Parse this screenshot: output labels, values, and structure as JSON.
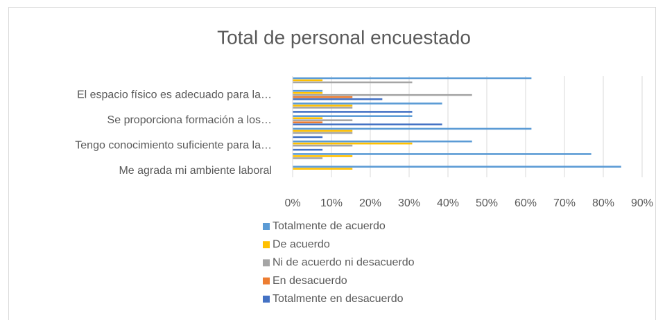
{
  "chart_data": {
    "type": "bar",
    "orientation": "horizontal",
    "title": "Total de personal encuestado",
    "categories": [
      null,
      "El espacio físico es adecuado para la…",
      null,
      "Se proporciona formación a los…",
      null,
      "Tengo conocimiento suficiente para la…",
      null,
      "Me agrada mi ambiente laboral"
    ],
    "series": [
      {
        "name": "Totalmente de acuerdo",
        "color": "#5b9bd5",
        "values": [
          61.5,
          7.7,
          38.5,
          30.8,
          61.5,
          46.2,
          76.9,
          84.6
        ]
      },
      {
        "name": "De acuerdo",
        "color": "#ffc000",
        "values": [
          7.7,
          7.7,
          15.4,
          7.7,
          15.4,
          30.8,
          15.4,
          15.4
        ]
      },
      {
        "name": "Ni de acuerdo ni desacuerdo",
        "color": "#a5a5a5",
        "values": [
          30.8,
          46.2,
          15.4,
          15.4,
          15.4,
          15.4,
          7.7,
          0
        ]
      },
      {
        "name": "En desacuerdo",
        "color": "#ed7d31",
        "values": [
          0,
          15.4,
          0,
          7.7,
          0,
          0,
          0,
          0
        ]
      },
      {
        "name": "Totalmente en desacuerdo",
        "color": "#4472c4",
        "values": [
          0,
          23.1,
          30.8,
          38.5,
          7.7,
          7.7,
          0,
          0
        ]
      }
    ],
    "xlim": [
      0,
      90
    ],
    "xticks": [
      {
        "value": 0,
        "label": "0%"
      },
      {
        "value": 10,
        "label": "10%"
      },
      {
        "value": 20,
        "label": "20%"
      },
      {
        "value": 30,
        "label": "30%"
      },
      {
        "value": 40,
        "label": "40%"
      },
      {
        "value": 50,
        "label": "50%"
      },
      {
        "value": 60,
        "label": "60%"
      },
      {
        "value": 70,
        "label": "70%"
      },
      {
        "value": 80,
        "label": "80%"
      },
      {
        "value": 90,
        "label": "90%"
      }
    ],
    "grid": true,
    "legend": "bottom"
  }
}
